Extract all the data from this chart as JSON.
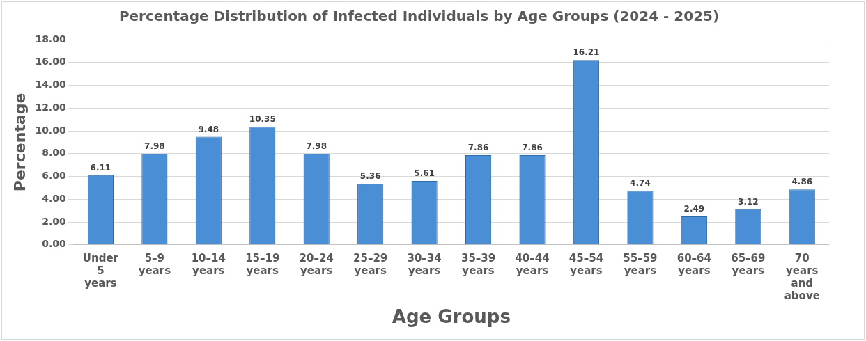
{
  "chart_data": {
    "type": "bar",
    "title": "Percentage Distribution of Infected Individuals by Age Groups (2024 - 2025)",
    "xlabel": "Age Groups",
    "ylabel": "Percentage",
    "categories": [
      "Under 5 years",
      "5–9 years",
      "10–14 years",
      "15–19 years",
      "20–24 years",
      "25–29 years",
      "30–34 years",
      "35–39 years",
      "40–44 years",
      "45–54 years",
      "55–59 years",
      "60–64 years",
      "65–69 years",
      "70 years and above"
    ],
    "values": [
      6.11,
      7.98,
      9.48,
      10.35,
      7.98,
      5.36,
      5.61,
      7.86,
      7.86,
      16.21,
      4.74,
      2.49,
      3.12,
      4.86
    ],
    "color": "#4a8ed6",
    "ylim": [
      0,
      18
    ],
    "yticks": [
      {
        "value": 0,
        "label": "0.00"
      },
      {
        "value": 2,
        "label": "2.00"
      },
      {
        "value": 4,
        "label": "4.00"
      },
      {
        "value": 6,
        "label": "6.00"
      },
      {
        "value": 8,
        "label": "8.00"
      },
      {
        "value": 10,
        "label": "10.00"
      },
      {
        "value": 12,
        "label": "12.00"
      },
      {
        "value": 14,
        "label": "14.00"
      },
      {
        "value": 16,
        "label": "16.00"
      },
      {
        "value": 18,
        "label": "18.00"
      }
    ],
    "grid": "y",
    "data_labels": true,
    "legend": false
  }
}
